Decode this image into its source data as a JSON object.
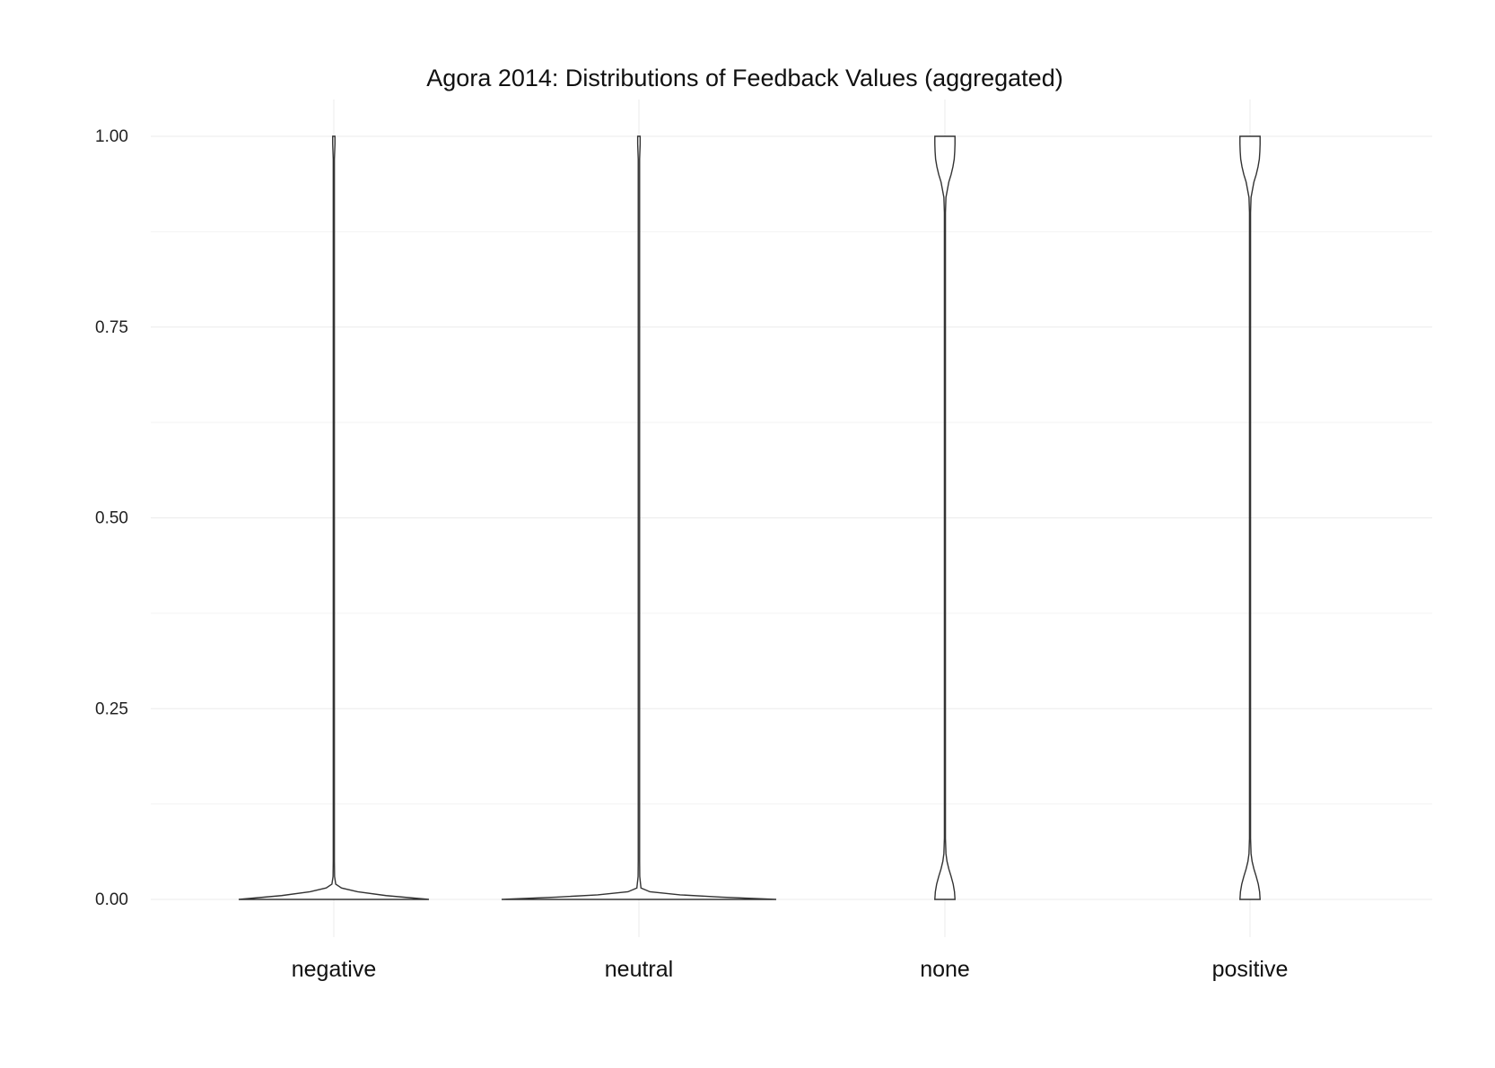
{
  "chart_data": {
    "type": "violin",
    "title": "Agora 2014: Distributions of Feedback Values (aggregated)",
    "xlabel": "",
    "ylabel": "",
    "categories": [
      "negative",
      "neutral",
      "none",
      "positive"
    ],
    "ylim": [
      0,
      1
    ],
    "yticks": [
      0,
      0.25,
      0.5,
      0.75,
      1
    ],
    "ytick_labels": [
      "0.00",
      "0.25",
      "0.50",
      "0.75",
      "1.00"
    ],
    "grid": true,
    "legend": "none",
    "line_color": "#333333",
    "fill_color": "#ffffff",
    "density": [
      {
        "category": "negative",
        "y": [
          0,
          0.005,
          0.01,
          0.015,
          0.02,
          0.03,
          0.05,
          0.1,
          0.3,
          0.5,
          0.7,
          0.9,
          0.97,
          0.99,
          1.0
        ],
        "width": [
          1.0,
          0.55,
          0.25,
          0.08,
          0.02,
          0.008,
          0.006,
          0.006,
          0.006,
          0.006,
          0.006,
          0.006,
          0.006,
          0.012,
          0.012
        ]
      },
      {
        "category": "neutral",
        "y": [
          0,
          0.003,
          0.006,
          0.01,
          0.015,
          0.03,
          0.05,
          0.1,
          0.3,
          0.5,
          0.7,
          0.9,
          0.97,
          0.99,
          1.0
        ],
        "width": [
          1.0,
          0.6,
          0.3,
          0.08,
          0.015,
          0.006,
          0.005,
          0.005,
          0.005,
          0.005,
          0.005,
          0.005,
          0.005,
          0.009,
          0.009
        ]
      },
      {
        "category": "none",
        "y": [
          0,
          0.01,
          0.02,
          0.03,
          0.04,
          0.05,
          0.06,
          0.08,
          0.1,
          0.5,
          0.9,
          0.92,
          0.94,
          0.95,
          0.96,
          0.97,
          0.98,
          0.99,
          1.0
        ],
        "width": [
          0.078,
          0.074,
          0.064,
          0.048,
          0.03,
          0.016,
          0.008,
          0.004,
          0.004,
          0.004,
          0.004,
          0.008,
          0.03,
          0.048,
          0.062,
          0.072,
          0.076,
          0.078,
          0.078
        ]
      },
      {
        "category": "positive",
        "y": [
          0,
          0.01,
          0.02,
          0.03,
          0.04,
          0.05,
          0.06,
          0.08,
          0.1,
          0.5,
          0.9,
          0.92,
          0.94,
          0.95,
          0.96,
          0.97,
          0.98,
          0.99,
          1.0
        ],
        "width": [
          0.078,
          0.074,
          0.064,
          0.048,
          0.03,
          0.016,
          0.008,
          0.004,
          0.004,
          0.004,
          0.004,
          0.008,
          0.03,
          0.048,
          0.062,
          0.072,
          0.076,
          0.078,
          0.078
        ]
      }
    ]
  }
}
